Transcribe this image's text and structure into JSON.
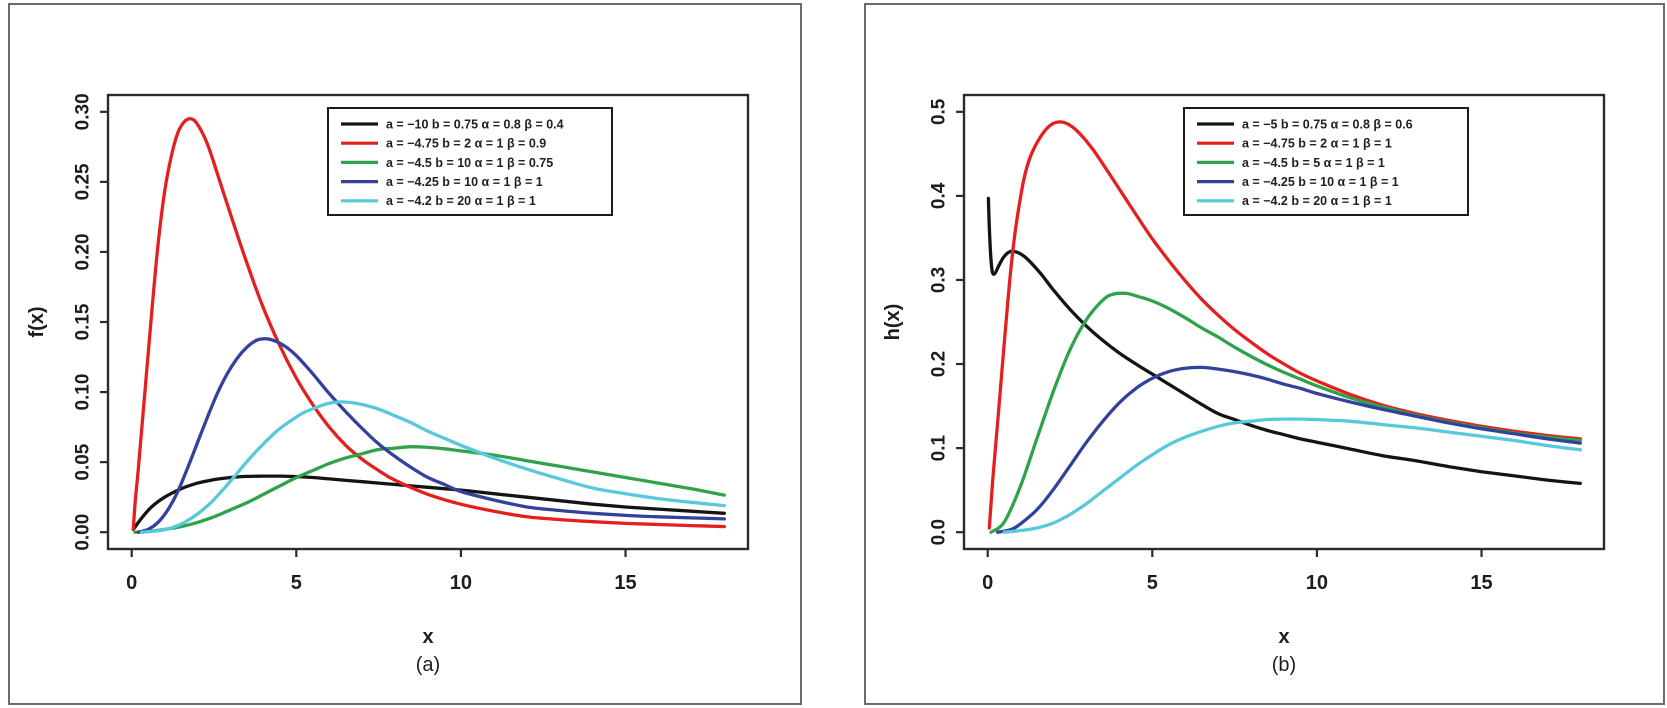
{
  "figure": {
    "background": "#ffffff",
    "panel_border_color": "#6b6b6b",
    "axis_color": "#2b2b2b",
    "text_color": "#1d1d1d"
  },
  "chart_data": [
    {
      "type": "line",
      "caption": "(a)",
      "xlabel": "x",
      "ylabel": "f(x)",
      "xlim": [
        0,
        18
      ],
      "ylim": [
        0,
        0.3
      ],
      "x_ticks": [
        "0",
        "5",
        "10",
        "15"
      ],
      "y_ticks": [
        "0.00",
        "0.05",
        "0.10",
        "0.15",
        "0.20",
        "0.25",
        "0.30"
      ],
      "grid": false,
      "legend_position": "top-center",
      "series": [
        {
          "id": "black",
          "name": "a = −10  b = 0.75  α = 0.8  β = 0.4",
          "color": "#141414",
          "x": [
            0.05,
            0.3,
            0.6,
            1,
            1.5,
            2,
            2.5,
            3,
            3.5,
            4,
            4.5,
            5,
            5.5,
            6,
            7,
            8,
            9,
            10,
            11,
            12,
            13,
            14,
            15,
            16,
            17,
            18
          ],
          "y": [
            0.002,
            0.01,
            0.018,
            0.025,
            0.031,
            0.035,
            0.0375,
            0.039,
            0.0398,
            0.04,
            0.04,
            0.0397,
            0.039,
            0.038,
            0.036,
            0.034,
            0.032,
            0.03,
            0.0275,
            0.025,
            0.0225,
            0.02,
            0.018,
            0.0165,
            0.015,
            0.0135
          ]
        },
        {
          "id": "red",
          "name": "a = −4.75  b = 2  α = 1  β = 0.9",
          "color": "#e3201f",
          "x": [
            0.05,
            0.1,
            0.2,
            0.4,
            0.6,
            0.8,
            1,
            1.2,
            1.4,
            1.6,
            1.8,
            2,
            2.3,
            2.6,
            3,
            3.5,
            4,
            4.5,
            5,
            5.5,
            6,
            6.5,
            7,
            7.5,
            8,
            9,
            10,
            11,
            12,
            13,
            14,
            15,
            16,
            17,
            18
          ],
          "y": [
            0.002,
            0.02,
            0.045,
            0.1,
            0.155,
            0.205,
            0.243,
            0.268,
            0.285,
            0.293,
            0.295,
            0.291,
            0.277,
            0.256,
            0.227,
            0.192,
            0.16,
            0.133,
            0.11,
            0.091,
            0.075,
            0.062,
            0.052,
            0.044,
            0.037,
            0.027,
            0.02,
            0.015,
            0.011,
            0.009,
            0.0075,
            0.0063,
            0.0055,
            0.0047,
            0.004
          ]
        },
        {
          "id": "green",
          "name": "a = −4.5  b = 10  α = 1  β = 0.75",
          "color": "#2fa24a",
          "x": [
            0.1,
            0.5,
            1,
            1.5,
            2,
            2.5,
            3,
            3.5,
            4,
            4.5,
            5,
            5.5,
            6,
            6.5,
            7,
            7.5,
            8,
            8.5,
            9,
            9.5,
            10,
            11,
            12,
            13,
            14,
            15,
            16,
            17,
            18
          ],
          "y": [
            0,
            0.0005,
            0.002,
            0.004,
            0.007,
            0.011,
            0.016,
            0.021,
            0.027,
            0.033,
            0.039,
            0.044,
            0.049,
            0.053,
            0.056,
            0.059,
            0.06,
            0.061,
            0.0605,
            0.0595,
            0.058,
            0.055,
            0.051,
            0.047,
            0.043,
            0.039,
            0.035,
            0.031,
            0.0265
          ]
        },
        {
          "id": "blue",
          "name": "a = −4.25  b = 10  α = 1  β = 1",
          "color": "#32429b",
          "x": [
            0.2,
            0.5,
            0.8,
            1.1,
            1.4,
            1.7,
            2,
            2.3,
            2.6,
            2.9,
            3.2,
            3.5,
            3.8,
            4.1,
            4.4,
            4.7,
            5,
            5.5,
            6,
            6.5,
            7,
            7.5,
            8,
            8.5,
            9,
            9.5,
            10,
            11,
            12,
            13,
            14,
            15,
            16,
            17,
            18
          ],
          "y": [
            0,
            0.002,
            0.007,
            0.016,
            0.029,
            0.046,
            0.064,
            0.082,
            0.099,
            0.113,
            0.124,
            0.132,
            0.137,
            0.138,
            0.136,
            0.132,
            0.126,
            0.113,
            0.099,
            0.086,
            0.074,
            0.063,
            0.054,
            0.046,
            0.039,
            0.034,
            0.029,
            0.023,
            0.018,
            0.0155,
            0.0135,
            0.012,
            0.011,
            0.0102,
            0.0095
          ]
        },
        {
          "id": "cyan",
          "name": "a = −4.2  b = 20  α = 1  β = 1",
          "color": "#58c8dd",
          "x": [
            0.3,
            0.8,
            1.2,
            1.6,
            2,
            2.4,
            2.8,
            3.2,
            3.6,
            4,
            4.4,
            4.8,
            5.2,
            5.6,
            6,
            6.4,
            6.8,
            7.2,
            7.6,
            8,
            8.5,
            9,
            9.5,
            10,
            11,
            12,
            13,
            14,
            15,
            16,
            17,
            18
          ],
          "y": [
            0,
            0.001,
            0.003,
            0.007,
            0.013,
            0.021,
            0.031,
            0.042,
            0.053,
            0.063,
            0.072,
            0.079,
            0.085,
            0.089,
            0.092,
            0.093,
            0.092,
            0.09,
            0.087,
            0.083,
            0.078,
            0.072,
            0.067,
            0.062,
            0.053,
            0.045,
            0.038,
            0.0315,
            0.0275,
            0.024,
            0.0213,
            0.019
          ]
        }
      ]
    },
    {
      "type": "line",
      "caption": "(b)",
      "xlabel": "x",
      "ylabel": "h(x)",
      "xlim": [
        0,
        18
      ],
      "ylim": [
        0,
        0.5
      ],
      "x_ticks": [
        "0",
        "5",
        "10",
        "15"
      ],
      "y_ticks": [
        "0.0",
        "0.1",
        "0.2",
        "0.3",
        "0.4",
        "0.5"
      ],
      "grid": false,
      "legend_position": "top-center",
      "series": [
        {
          "id": "black",
          "name": "a = −5  b = 0.75  α = 0.8  β = 0.6",
          "color": "#141414",
          "x": [
            0.02,
            0.06,
            0.12,
            0.2,
            0.35,
            0.5,
            0.7,
            0.95,
            1.2,
            1.6,
            2,
            2.5,
            3,
            3.5,
            4,
            4.5,
            5,
            5.5,
            6,
            6.5,
            7,
            7.5,
            8,
            8.5,
            9,
            9.5,
            10,
            11,
            12,
            13,
            14,
            15,
            16,
            17,
            18
          ],
          "y": [
            0.397,
            0.352,
            0.315,
            0.307,
            0.318,
            0.328,
            0.334,
            0.332,
            0.325,
            0.308,
            0.288,
            0.265,
            0.245,
            0.228,
            0.213,
            0.2,
            0.188,
            0.176,
            0.164,
            0.152,
            0.141,
            0.134,
            0.127,
            0.121,
            0.116,
            0.111,
            0.107,
            0.099,
            0.091,
            0.085,
            0.078,
            0.072,
            0.067,
            0.062,
            0.058
          ]
        },
        {
          "id": "red",
          "name": "a = −4.75  b = 2  α = 1  β = 1",
          "color": "#e3201f",
          "x": [
            0.05,
            0.15,
            0.3,
            0.45,
            0.6,
            0.75,
            0.9,
            1.1,
            1.3,
            1.6,
            1.9,
            2.2,
            2.5,
            2.8,
            3.2,
            3.6,
            4,
            4.5,
            5,
            5.5,
            6,
            6.5,
            7,
            7.5,
            8,
            8.5,
            9,
            9.5,
            10,
            11,
            12,
            13,
            14,
            15,
            16,
            17,
            18
          ],
          "y": [
            0.005,
            0.06,
            0.13,
            0.2,
            0.27,
            0.33,
            0.375,
            0.42,
            0.447,
            0.47,
            0.484,
            0.488,
            0.484,
            0.474,
            0.455,
            0.432,
            0.408,
            0.378,
            0.349,
            0.323,
            0.299,
            0.277,
            0.258,
            0.241,
            0.226,
            0.212,
            0.2,
            0.189,
            0.18,
            0.164,
            0.151,
            0.141,
            0.133,
            0.126,
            0.12,
            0.115,
            0.111
          ]
        },
        {
          "id": "green",
          "name": "a = −4.5  b = 5  α = 1  β = 1",
          "color": "#2fa24a",
          "x": [
            0.1,
            0.5,
            1,
            1.5,
            2,
            2.5,
            3,
            3.5,
            3.8,
            4.2,
            4.6,
            5,
            5.5,
            6,
            6.5,
            7,
            7.5,
            8,
            8.5,
            9,
            9.5,
            10,
            11,
            12,
            13,
            14,
            15,
            16,
            17,
            18
          ],
          "y": [
            0,
            0.012,
            0.055,
            0.112,
            0.168,
            0.217,
            0.253,
            0.276,
            0.283,
            0.284,
            0.28,
            0.275,
            0.266,
            0.255,
            0.243,
            0.232,
            0.22,
            0.209,
            0.199,
            0.19,
            0.182,
            0.174,
            0.16,
            0.149,
            0.139,
            0.131,
            0.124,
            0.118,
            0.113,
            0.109
          ]
        },
        {
          "id": "blue",
          "name": "a = −4.25  b = 10  α = 1  β = 1",
          "color": "#32429b",
          "x": [
            0.3,
            0.7,
            1,
            1.5,
            2,
            2.5,
            3,
            3.5,
            4,
            4.5,
            5,
            5.5,
            6,
            6.5,
            7,
            7.5,
            8,
            8.5,
            9,
            9.5,
            10,
            11,
            12,
            13,
            14,
            15,
            16,
            17,
            18
          ],
          "y": [
            0,
            0.003,
            0.01,
            0.027,
            0.051,
            0.079,
            0.107,
            0.132,
            0.154,
            0.171,
            0.183,
            0.191,
            0.195,
            0.196,
            0.194,
            0.191,
            0.187,
            0.182,
            0.176,
            0.171,
            0.165,
            0.155,
            0.146,
            0.138,
            0.13,
            0.123,
            0.117,
            0.111,
            0.106
          ]
        },
        {
          "id": "cyan",
          "name": "a = −4.2  b = 20  α = 1  β = 1",
          "color": "#58c8dd",
          "x": [
            0.5,
            1,
            1.5,
            2,
            2.5,
            3,
            3.5,
            4,
            4.5,
            5,
            5.5,
            6,
            6.5,
            7,
            7.5,
            8,
            8.5,
            9,
            9.5,
            10,
            10.5,
            11,
            12,
            13,
            14,
            15,
            16,
            17,
            18
          ],
          "y": [
            0,
            0.002,
            0.005,
            0.011,
            0.021,
            0.034,
            0.049,
            0.064,
            0.079,
            0.092,
            0.104,
            0.113,
            0.12,
            0.126,
            0.13,
            0.132,
            0.134,
            0.1345,
            0.1345,
            0.134,
            0.133,
            0.132,
            0.128,
            0.124,
            0.119,
            0.114,
            0.109,
            0.103,
            0.098
          ]
        }
      ]
    }
  ]
}
